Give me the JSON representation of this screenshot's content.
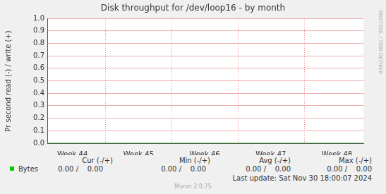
{
  "chart_data": {
    "type": "line",
    "title": "Disk throughput for /dev/loop16 - by month",
    "y_label": "Pr second read (-) / write (+)",
    "watermark": "RRDTOOL / TOBI OETIKER",
    "x": [
      43.62,
      48.4
    ],
    "series": [
      {
        "name": "Bytes",
        "color": "#00cc00",
        "values": [
          0,
          0
        ]
      }
    ],
    "xlim": [
      43.62,
      48.4
    ],
    "xticks": [
      {
        "value": 44,
        "label": "Week 44"
      },
      {
        "value": 45,
        "label": "Week 45"
      },
      {
        "value": 46,
        "label": "Week 46"
      },
      {
        "value": 47,
        "label": "Week 47"
      },
      {
        "value": 48,
        "label": "Week 48"
      }
    ],
    "ylim": [
      0,
      1
    ],
    "yticks": [
      {
        "value": 0,
        "label": "0.0"
      },
      {
        "value": 0.1,
        "label": "0.1"
      },
      {
        "value": 0.2,
        "label": "0.2"
      },
      {
        "value": 0.3,
        "label": "0.3"
      },
      {
        "value": 0.4,
        "label": "0.4"
      },
      {
        "value": 0.5,
        "label": "0.5"
      },
      {
        "value": 0.6,
        "label": "0.6"
      },
      {
        "value": 0.7,
        "label": "0.7"
      },
      {
        "value": 0.8,
        "label": "0.8"
      },
      {
        "value": 0.9,
        "label": "0.9"
      },
      {
        "value": 1,
        "label": "1.0"
      }
    ],
    "grid": true,
    "legend_table": {
      "headers": [
        "Cur (-/+)",
        "Min (-/+)",
        "Avg (-/+)",
        "Max (-/+)"
      ],
      "rows": [
        {
          "name": "Bytes",
          "cells": [
            "0.00 /    0.00",
            "0.00 /    0.00",
            "0.00 /    0.00",
            "0.00 /    0.00"
          ]
        }
      ]
    },
    "last_update": "Last update: Sat Nov 30 18:00:07 2024",
    "footer": "Munin 2.0.75"
  }
}
